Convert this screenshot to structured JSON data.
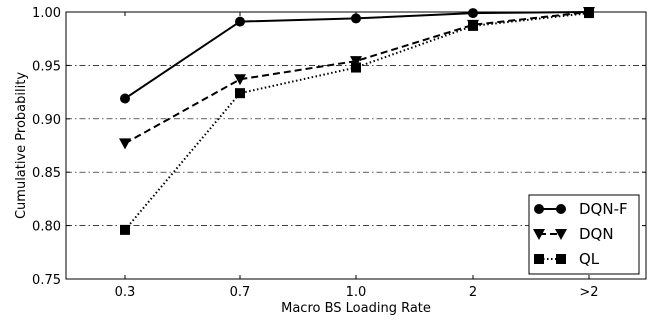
{
  "chart_data": {
    "type": "line",
    "title": "",
    "xlabel": "Macro BS Loading Rate",
    "ylabel": "Cumulative Probability",
    "categories": [
      "0.3",
      "0.7",
      "1.0",
      "2",
      ">2"
    ],
    "ylim": [
      0.75,
      1.0
    ],
    "yticks": [
      "0.75",
      "0.80",
      "0.85",
      "0.90",
      "0.95",
      "1.00"
    ],
    "grid": "horizontal dash-dot",
    "legend_position": "lower-right",
    "series": [
      {
        "name": "DQN-F",
        "marker": "circle",
        "line": "solid",
        "values": [
          0.919,
          0.991,
          0.994,
          0.999,
          1.0
        ]
      },
      {
        "name": "DQN",
        "marker": "triangle-down",
        "line": "dashed",
        "values": [
          0.877,
          0.937,
          0.954,
          0.988,
          1.0
        ]
      },
      {
        "name": "QL",
        "marker": "square",
        "line": "dotted",
        "values": [
          0.796,
          0.924,
          0.948,
          0.987,
          0.999
        ]
      }
    ]
  }
}
